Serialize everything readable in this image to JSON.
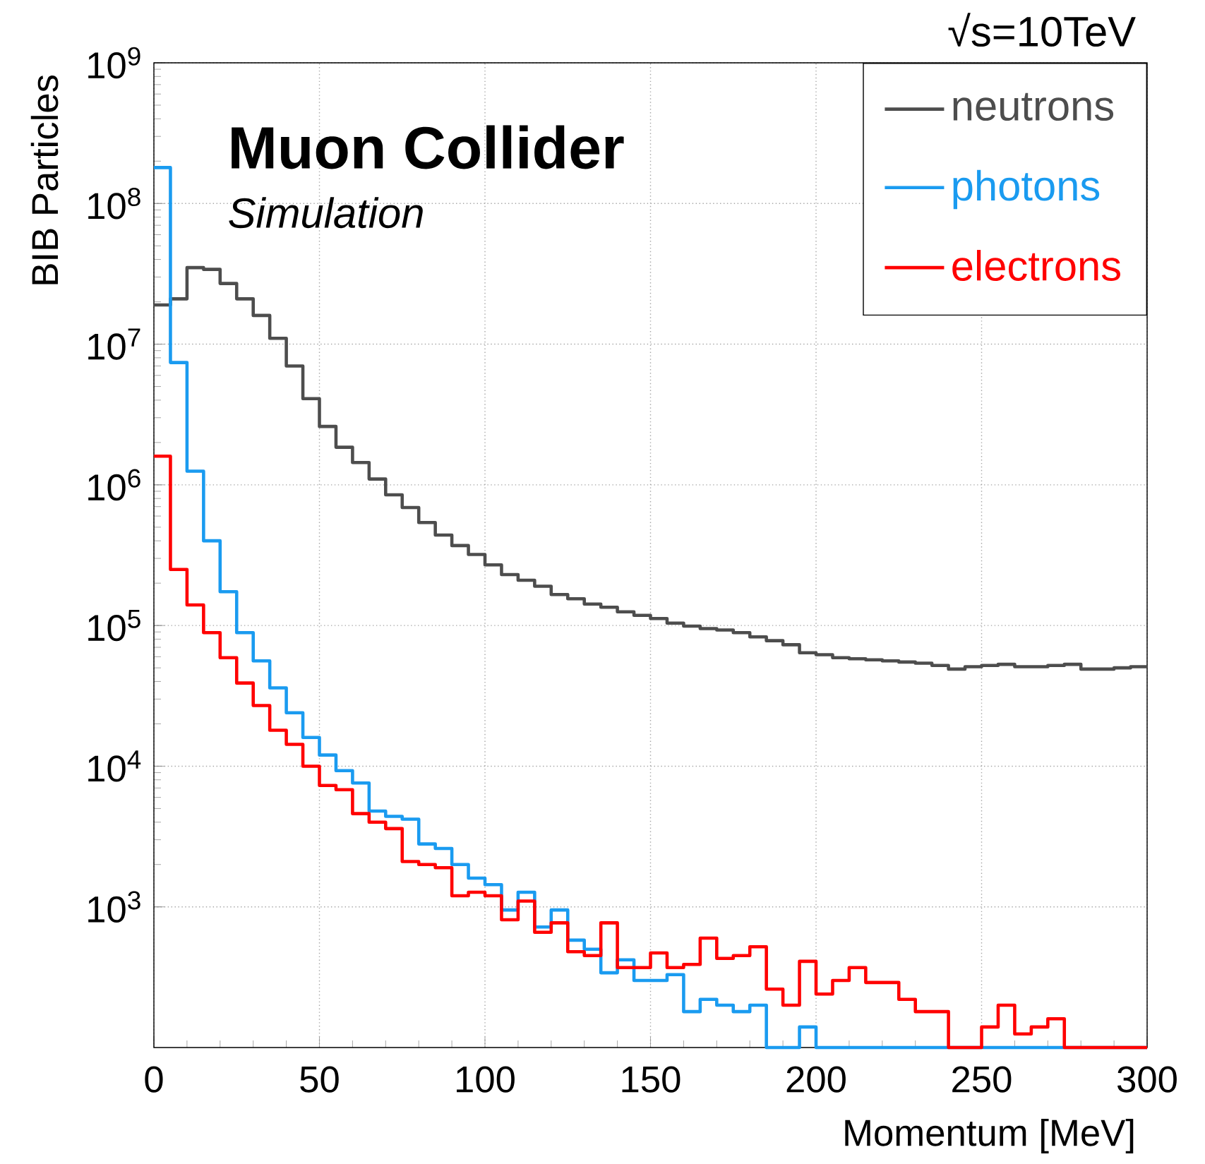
{
  "chart_data": {
    "type": "histogram",
    "xlabel": "Momentum [MeV]",
    "ylabel": "BIB Particles",
    "annotations": [
      "Muon Collider",
      "Simulation",
      "√s=10TeV"
    ],
    "bins": [
      0,
      5,
      10,
      15,
      20,
      25,
      30,
      35,
      40,
      45,
      50,
      55,
      60,
      65,
      70,
      75,
      80,
      85,
      90,
      95,
      100,
      105,
      110,
      115,
      120,
      125,
      130,
      135,
      140,
      145,
      150,
      155,
      160,
      165,
      170,
      175,
      180,
      185,
      190,
      195,
      200,
      205,
      210,
      215,
      220,
      225,
      230,
      235,
      240,
      245,
      250,
      255,
      260,
      265,
      270,
      275,
      280,
      285,
      290,
      295,
      300
    ],
    "series": [
      {
        "name": "neutrons",
        "color": "#4d4d4d",
        "values": [
          19000000,
          21000000,
          35000000,
          34000000,
          27000000,
          21000000,
          16000000,
          11000000,
          7000000,
          4100000,
          2600000,
          1850000,
          1440000,
          1100000,
          850000,
          690000,
          540000,
          440000,
          370000,
          320000,
          270000,
          230000,
          210000,
          190000,
          166000,
          155000,
          142000,
          135000,
          125000,
          118000,
          112000,
          104000,
          99000,
          95000,
          93000,
          89000,
          83000,
          78000,
          73000,
          64000,
          62000,
          59000,
          58000,
          57000,
          56000,
          55000,
          54000,
          52000,
          49000,
          51000,
          52000,
          53000,
          51000,
          51000,
          52000,
          53000,
          49000,
          49000,
          50000,
          51000
        ]
      },
      {
        "name": "photons",
        "color": "#1a9bf0",
        "values": [
          180000000,
          7400000,
          1250000,
          400000,
          174000,
          89000,
          56000,
          36000,
          24000,
          16000,
          12000,
          9300,
          7600,
          4800,
          4400,
          4200,
          2800,
          2600,
          2000,
          1600,
          1440,
          950,
          1270,
          720,
          950,
          580,
          500,
          340,
          420,
          300,
          300,
          330,
          180,
          220,
          200,
          180,
          200,
          100,
          100,
          140,
          100,
          100,
          100,
          100,
          100,
          100,
          100,
          100,
          100,
          100,
          100,
          100,
          100,
          100,
          100,
          100,
          100,
          100,
          100,
          100
        ]
      },
      {
        "name": "electrons",
        "color": "#ff0000",
        "values": [
          1600000,
          250000,
          140000,
          89000,
          59000,
          39000,
          27000,
          18000,
          14300,
          10000,
          7300,
          6800,
          4600,
          4000,
          3600,
          2100,
          2000,
          1900,
          1200,
          1270,
          1200,
          810,
          1100,
          660,
          770,
          480,
          450,
          770,
          370,
          370,
          470,
          370,
          390,
          600,
          430,
          450,
          520,
          260,
          200,
          410,
          240,
          300,
          370,
          290,
          290,
          220,
          180,
          180,
          100,
          100,
          140,
          200,
          125,
          140,
          160,
          100,
          100,
          100,
          100,
          100
        ]
      }
    ],
    "xlim": [
      0,
      300
    ],
    "ylim": [
      100,
      1000000000
    ],
    "xticks": [
      0,
      50,
      100,
      150,
      200,
      250,
      300
    ],
    "yticks": [
      {
        "value": 1000,
        "label": "10$^{3}$"
      },
      {
        "value": 10000,
        "label": "10$^{4}$"
      },
      {
        "value": 100000,
        "label": "10$^{5}$"
      },
      {
        "value": 1000000,
        "label": "10$^{6}$"
      },
      {
        "value": 10000000,
        "label": "10$^{7}$"
      },
      {
        "value": 100000000,
        "label": "10$^{8}$"
      },
      {
        "value": 1000000000,
        "label": "10$^{9}$"
      }
    ],
    "log": "y",
    "grid": true,
    "legend": "top right"
  }
}
